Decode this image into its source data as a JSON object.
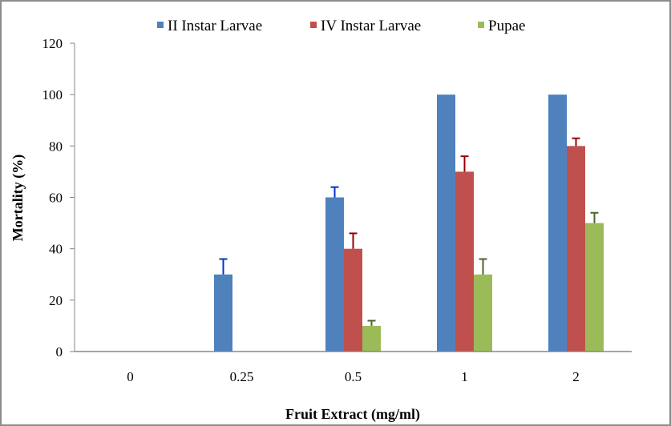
{
  "chart_data": {
    "type": "bar",
    "title": "",
    "xlabel": "Fruit Extract (mg/ml)",
    "ylabel": "Mortality (%)",
    "ylim": [
      0,
      120
    ],
    "yticks": [
      "0",
      "20",
      "40",
      "60",
      "80",
      "100",
      "120"
    ],
    "ytick_values": [
      0,
      20,
      40,
      60,
      80,
      100,
      120
    ],
    "categories": [
      "0",
      "0.25",
      "0.5",
      "1",
      "2"
    ],
    "grid": false,
    "legend_position": "top",
    "series": [
      {
        "name": "II Instar Larvae",
        "color": "#4f81bd",
        "error_color": "#0033cc",
        "values": [
          0,
          30,
          60,
          100,
          100
        ],
        "errors": [
          0,
          6,
          4,
          0,
          0
        ]
      },
      {
        "name": "IV Instar Larvae",
        "color": "#c0504d",
        "error_color": "#990000",
        "values": [
          0,
          0,
          40,
          70,
          80
        ],
        "errors": [
          0,
          0,
          6,
          6,
          3
        ]
      },
      {
        "name": "Pupae",
        "color": "#9bbb59",
        "error_color": "#4f6228",
        "values": [
          0,
          0,
          10,
          30,
          50
        ],
        "errors": [
          0,
          0,
          2,
          6,
          4
        ]
      }
    ],
    "axis_color": "#868686"
  }
}
